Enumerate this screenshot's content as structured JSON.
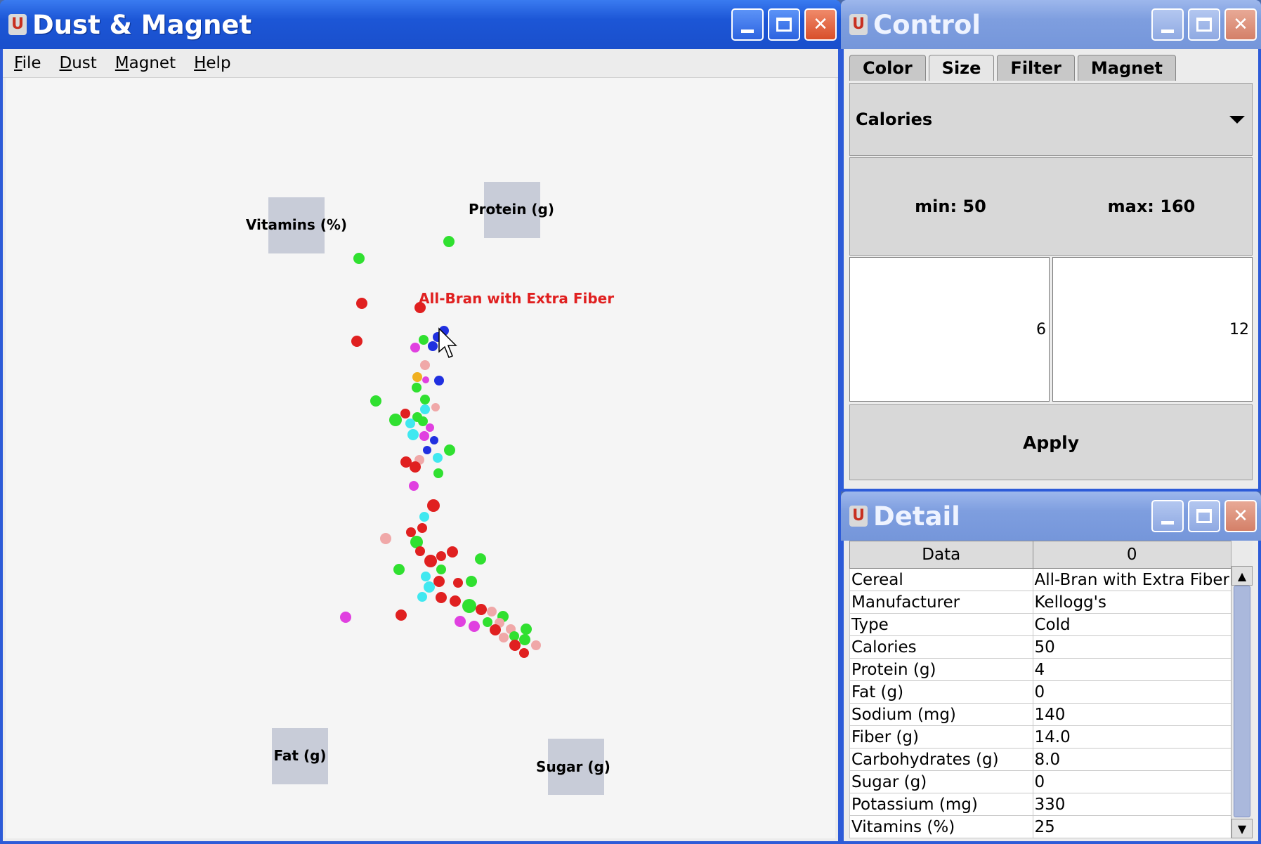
{
  "main_window": {
    "title": "Dust & Magnet",
    "menu": [
      "File",
      "Dust",
      "Magnet",
      "Help"
    ],
    "magnets": [
      {
        "label": "Vitamins (%)"
      },
      {
        "label": "Protein (g)"
      },
      {
        "label": "Fat (g)"
      },
      {
        "label": "Sugar (g)"
      }
    ],
    "highlight_label": "All-Bran with Extra Fiber",
    "dust_colors": {
      "red": "#e02020",
      "green": "#30e030",
      "blue": "#2030e0",
      "magenta": "#e040e0",
      "pink": "#f0a8a8",
      "cyan": "#40e8f0",
      "orange": "#f0b020"
    }
  },
  "control_window": {
    "title": "Control",
    "tabs": [
      "Color",
      "Size",
      "Filter",
      "Magnet"
    ],
    "selected_tab": "Size",
    "attribute": "Calories",
    "min_label": "min: 50",
    "max_label": "max: 160",
    "field_left": "6",
    "field_right": "12",
    "apply_label": "Apply"
  },
  "detail_window": {
    "title": "Detail",
    "headers": [
      "Data",
      "0"
    ],
    "rows": [
      [
        "Cereal",
        "All-Bran with Extra Fiber"
      ],
      [
        "Manufacturer",
        "Kellogg's"
      ],
      [
        "Type",
        "Cold"
      ],
      [
        "Calories",
        "50"
      ],
      [
        "Protein (g)",
        "4"
      ],
      [
        "Fat (g)",
        "0"
      ],
      [
        "Sodium (mg)",
        "140"
      ],
      [
        "Fiber (g)",
        "14.0"
      ],
      [
        "Carbohydrates (g)",
        "8.0"
      ],
      [
        "Sugar (g)",
        "0"
      ],
      [
        "Potassium (mg)",
        "330"
      ],
      [
        "Vitamins (%)",
        "25"
      ]
    ]
  }
}
